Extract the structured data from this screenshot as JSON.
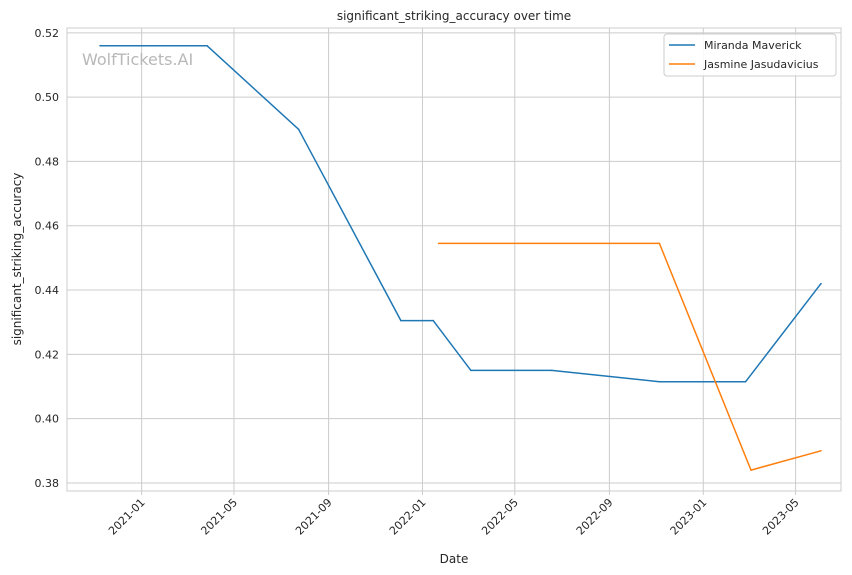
{
  "chart_data": {
    "type": "line",
    "title": "significant_striking_accuracy over time",
    "xlabel": "Date",
    "ylabel": "significant_striking_accuracy",
    "watermark": "WolfTickets.AI",
    "xlim": [
      "2020-09-26",
      "2023-06-29"
    ],
    "ylim": [
      0.3775,
      0.5215
    ],
    "x_ticks": [
      "2021-01-01",
      "2021-05-01",
      "2021-09-01",
      "2022-01-01",
      "2022-05-01",
      "2022-09-01",
      "2023-01-01",
      "2023-05-01"
    ],
    "x_tick_labels": [
      "2021-01",
      "2021-05",
      "2021-09",
      "2022-01",
      "2022-05",
      "2022-09",
      "2023-01",
      "2023-05"
    ],
    "y_ticks": [
      0.38,
      0.4,
      0.42,
      0.44,
      0.46,
      0.48,
      0.5,
      0.52
    ],
    "y_tick_labels": [
      "0.38",
      "0.40",
      "0.42",
      "0.44",
      "0.46",
      "0.48",
      "0.50",
      "0.52"
    ],
    "grid": true,
    "legend_position": "top-right",
    "series": [
      {
        "name": "Miranda Maverick",
        "color": "#1f77b4",
        "points": [
          [
            "2020-11-08",
            0.516
          ],
          [
            "2021-03-27",
            0.516
          ],
          [
            "2021-07-24",
            0.49
          ],
          [
            "2021-12-04",
            0.4305
          ],
          [
            "2022-01-15",
            0.4305
          ],
          [
            "2022-03-05",
            0.415
          ],
          [
            "2022-06-18",
            0.415
          ],
          [
            "2022-11-05",
            0.4115
          ],
          [
            "2023-02-25",
            0.4115
          ],
          [
            "2023-06-03",
            0.442
          ]
        ]
      },
      {
        "name": "Jasmine Jasudavicius",
        "color": "#ff7f0e",
        "points": [
          [
            "2022-01-22",
            0.4545
          ],
          [
            "2022-11-05",
            0.4545
          ],
          [
            "2023-03-04",
            0.384
          ],
          [
            "2023-06-03",
            0.39
          ]
        ]
      }
    ]
  }
}
